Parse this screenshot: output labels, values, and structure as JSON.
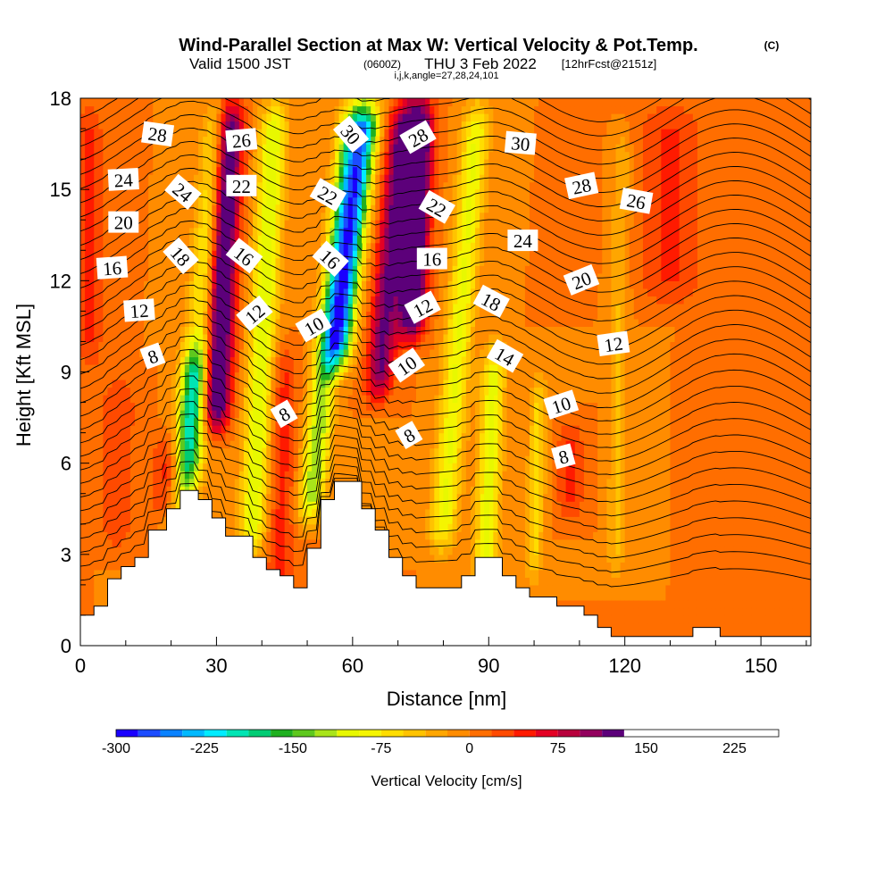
{
  "header": {
    "title": "Wind-Parallel Section at Max W: Vertical Velocity & Pot.Temp.",
    "copyright": "(C)",
    "valid_prefix": "Valid 1500 JST",
    "valid_utc": "(0600Z)",
    "valid_date": "THU 3 Feb 2022",
    "forecast": "[12hrFcst@2151z]",
    "indices": "i,j,k,angle=27,28,24,101"
  },
  "chart_data": {
    "type": "heatmap",
    "xlabel": "Distance [nm]",
    "ylabel": "Height [Kft MSL]",
    "xlim": [
      0,
      161
    ],
    "ylim": [
      0,
      18
    ],
    "x_ticks": [
      "0",
      "30",
      "60",
      "90",
      "120",
      "150"
    ],
    "x_tick_values": [
      0,
      30,
      60,
      90,
      120,
      150
    ],
    "y_ticks": [
      "0",
      "3",
      "6",
      "9",
      "12",
      "15",
      "18"
    ],
    "y_tick_values": [
      0,
      3,
      6,
      9,
      12,
      15,
      18
    ],
    "grid": false,
    "colorbar": {
      "label": "Vertical Velocity [cm/s]",
      "placement": "bottom",
      "range": [
        -300,
        262.5
      ],
      "step": 18.75,
      "tick_labels": [
        "-300",
        "-225",
        "-150",
        "-75",
        "0",
        "75",
        "150",
        "225"
      ],
      "tick_values": [
        -300,
        -225,
        -150,
        -75,
        0,
        75,
        150,
        225
      ],
      "colors": [
        "#1a00ff",
        "#1c4cff",
        "#0a82ff",
        "#00b9ff",
        "#00ecff",
        "#00e5b4",
        "#00cc74",
        "#1fb020",
        "#5ec81e",
        "#a9e41a",
        "#e8f800",
        "#f5f500",
        "#ffdd00",
        "#ffc300",
        "#ffa600",
        "#ff8c00",
        "#ff6e00",
        "#ff4a00",
        "#ff1a00",
        "#e40024",
        "#b8003c",
        "#93005e",
        "#5c007a"
      ]
    },
    "terrain_kft": [
      [
        0,
        1.0
      ],
      [
        3,
        1.0
      ],
      [
        3,
        1.3
      ],
      [
        6,
        1.3
      ],
      [
        6,
        2.2
      ],
      [
        9,
        2.2
      ],
      [
        9,
        2.6
      ],
      [
        12,
        2.6
      ],
      [
        12,
        2.9
      ],
      [
        15,
        2.9
      ],
      [
        15,
        3.8
      ],
      [
        19,
        3.8
      ],
      [
        19,
        4.5
      ],
      [
        22,
        4.5
      ],
      [
        22,
        5.1
      ],
      [
        26,
        5.1
      ],
      [
        26,
        4.8
      ],
      [
        29,
        4.8
      ],
      [
        29,
        4.2
      ],
      [
        32,
        4.2
      ],
      [
        32,
        3.6
      ],
      [
        35,
        3.6
      ],
      [
        35,
        3.6
      ],
      [
        38,
        3.6
      ],
      [
        38,
        2.9
      ],
      [
        41,
        2.9
      ],
      [
        41,
        2.5
      ],
      [
        44,
        2.5
      ],
      [
        44,
        2.3
      ],
      [
        47,
        2.3
      ],
      [
        47,
        1.9
      ],
      [
        50,
        1.9
      ],
      [
        50,
        3.2
      ],
      [
        53,
        3.2
      ],
      [
        53,
        4.8
      ],
      [
        56,
        4.8
      ],
      [
        56,
        5.4
      ],
      [
        62,
        5.4
      ],
      [
        62,
        4.5
      ],
      [
        65,
        4.5
      ],
      [
        65,
        3.8
      ],
      [
        68,
        3.8
      ],
      [
        68,
        2.9
      ],
      [
        71,
        2.9
      ],
      [
        71,
        2.3
      ],
      [
        74,
        2.3
      ],
      [
        74,
        1.9
      ],
      [
        77,
        1.9
      ],
      [
        77,
        1.9
      ],
      [
        84,
        1.9
      ],
      [
        84,
        2.3
      ],
      [
        87,
        2.3
      ],
      [
        87,
        2.9
      ],
      [
        93,
        2.9
      ],
      [
        93,
        2.3
      ],
      [
        96,
        2.3
      ],
      [
        96,
        1.9
      ],
      [
        99,
        1.9
      ],
      [
        99,
        1.6
      ],
      [
        105,
        1.6
      ],
      [
        105,
        1.3
      ],
      [
        111,
        1.3
      ],
      [
        111,
        1.0
      ],
      [
        114,
        1.0
      ],
      [
        114,
        0.6
      ],
      [
        117,
        0.6
      ],
      [
        117,
        0.3
      ],
      [
        135,
        0.3
      ],
      [
        135,
        0.6
      ],
      [
        141,
        0.6
      ],
      [
        141,
        0.3
      ],
      [
        161,
        0.3
      ]
    ],
    "w_features": [
      {
        "x": 20,
        "top": 10,
        "bottom": 0,
        "slope": 0.55,
        "width": 3,
        "value": -120
      },
      {
        "x": 24,
        "top": 18,
        "bottom": 6,
        "slope": 0.55,
        "width": 3,
        "value": -90
      },
      {
        "x": 30,
        "top": 18,
        "bottom": 8,
        "slope": 0.3,
        "width": 3,
        "value": 165
      },
      {
        "x": 38,
        "top": 18,
        "bottom": 4,
        "slope": 0.35,
        "width": 3,
        "value": -110
      },
      {
        "x": 44,
        "top": 10,
        "bottom": 2,
        "slope": 0.1,
        "width": 3,
        "value": 45
      },
      {
        "x": 51,
        "top": 18,
        "bottom": 5,
        "slope": 0.7,
        "width": 2.8,
        "value": -130
      },
      {
        "x": 57,
        "top": 18,
        "bottom": 10,
        "slope": 0.8,
        "width": 3,
        "value": -230
      },
      {
        "x": 66,
        "top": 18,
        "bottom": 9,
        "slope": 0.6,
        "width": 3,
        "value": 115
      },
      {
        "x": 73,
        "top": 18,
        "bottom": 11,
        "slope": 0.3,
        "width": 3,
        "value": 170
      },
      {
        "x": 80,
        "top": 18,
        "bottom": 4,
        "slope": 0.55,
        "width": 3,
        "value": -95
      },
      {
        "x": 89,
        "top": 10,
        "bottom": 2,
        "slope": 0.3,
        "width": 2.6,
        "value": -100
      },
      {
        "x": 100,
        "top": 9,
        "bottom": 3,
        "slope": 0.2,
        "width": 2,
        "value": -60
      },
      {
        "x": 118,
        "top": 17,
        "bottom": 3,
        "slope": 0.1,
        "width": 2,
        "value": -40
      },
      {
        "x": 8,
        "top": 9,
        "bottom": 4,
        "slope": 0.1,
        "width": 4,
        "value": 35
      },
      {
        "x": 20,
        "top": 7,
        "bottom": 5,
        "slope": 0.0,
        "width": 4,
        "value": 60
      },
      {
        "x": 108,
        "top": 7.5,
        "bottom": 5,
        "slope": 0.0,
        "width": 3,
        "value": 45
      },
      {
        "x": 130,
        "top": 18,
        "bottom": 12,
        "slope": 0.0,
        "width": 7,
        "value": 40
      },
      {
        "x": 2,
        "top": 18,
        "bottom": 10,
        "slope": 0.0,
        "width": 3,
        "value": 40
      }
    ],
    "theta_contour_values": [
      8,
      10,
      12,
      14,
      16,
      18,
      20,
      22,
      24,
      26,
      28,
      30
    ],
    "theta_labels": [
      {
        "text": "28",
        "x": 17,
        "y": 16.8,
        "angle": 8
      },
      {
        "text": "24",
        "x": 9.5,
        "y": 15.3,
        "angle": -3
      },
      {
        "text": "20",
        "x": 9.5,
        "y": 13.9,
        "angle": 0
      },
      {
        "text": "16",
        "x": 7,
        "y": 12.4,
        "angle": -4
      },
      {
        "text": "12",
        "x": 13,
        "y": 11.0,
        "angle": -4
      },
      {
        "text": "8",
        "x": 16,
        "y": 9.5,
        "angle": -20
      },
      {
        "text": "24",
        "x": 22.5,
        "y": 14.9,
        "angle": 40
      },
      {
        "text": "18",
        "x": 22,
        "y": 12.8,
        "angle": 48
      },
      {
        "text": "26",
        "x": 35.5,
        "y": 16.6,
        "angle": -5
      },
      {
        "text": "22",
        "x": 35.5,
        "y": 15.1,
        "angle": 0
      },
      {
        "text": "16",
        "x": 36,
        "y": 12.8,
        "angle": 38
      },
      {
        "text": "12",
        "x": 38.5,
        "y": 10.9,
        "angle": -40
      },
      {
        "text": "10",
        "x": 51.5,
        "y": 10.5,
        "angle": -30
      },
      {
        "text": "8",
        "x": 45,
        "y": 7.6,
        "angle": -30
      },
      {
        "text": "30",
        "x": 59.5,
        "y": 16.8,
        "angle": 50
      },
      {
        "text": "22",
        "x": 54.5,
        "y": 14.8,
        "angle": 30
      },
      {
        "text": "16",
        "x": 55,
        "y": 12.7,
        "angle": 42
      },
      {
        "text": "28",
        "x": 74.5,
        "y": 16.7,
        "angle": -30
      },
      {
        "text": "22",
        "x": 78.5,
        "y": 14.4,
        "angle": 30
      },
      {
        "text": "16",
        "x": 77.5,
        "y": 12.7,
        "angle": 0
      },
      {
        "text": "12",
        "x": 75.5,
        "y": 11.1,
        "angle": -28
      },
      {
        "text": "10",
        "x": 72,
        "y": 9.2,
        "angle": -35
      },
      {
        "text": "8",
        "x": 72.5,
        "y": 6.9,
        "angle": -30
      },
      {
        "text": "30",
        "x": 97,
        "y": 16.5,
        "angle": 5
      },
      {
        "text": "28",
        "x": 110.5,
        "y": 15.1,
        "angle": -12
      },
      {
        "text": "26",
        "x": 122.5,
        "y": 14.6,
        "angle": 10
      },
      {
        "text": "24",
        "x": 97.5,
        "y": 13.3,
        "angle": 0
      },
      {
        "text": "18",
        "x": 90.5,
        "y": 11.3,
        "angle": 28
      },
      {
        "text": "20",
        "x": 110.5,
        "y": 12.0,
        "angle": -22
      },
      {
        "text": "14",
        "x": 93.5,
        "y": 9.5,
        "angle": 30
      },
      {
        "text": "12",
        "x": 117.5,
        "y": 9.9,
        "angle": -8
      },
      {
        "text": "10",
        "x": 106,
        "y": 7.9,
        "angle": -18
      },
      {
        "text": "8",
        "x": 106.5,
        "y": 6.2,
        "angle": -15
      }
    ]
  }
}
